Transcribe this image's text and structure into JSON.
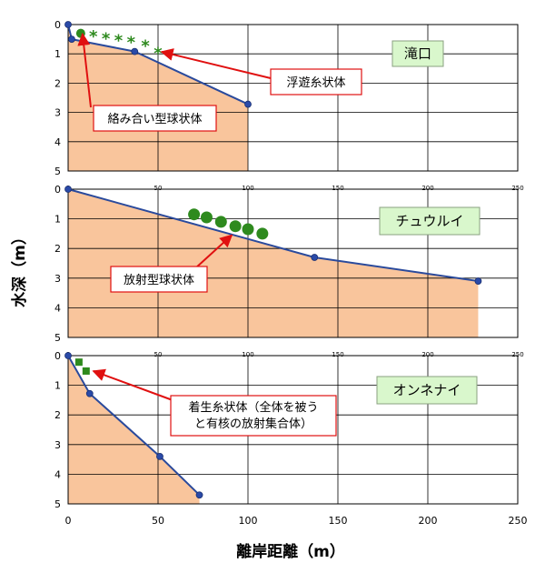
{
  "figure": {
    "ylabel": "水深（m）",
    "xlabel": "離岸距離（m）"
  },
  "colors": {
    "fill": "#f9c59c",
    "line": "#2a4a9c",
    "point": "#2a4aa8",
    "algae": "#2e8a1e",
    "arrow": "#e01010",
    "site_box": "#d9f7cc"
  },
  "chart_data": [
    {
      "type": "area",
      "site": "滝口",
      "xlim": [
        0,
        250
      ],
      "ylim": [
        0,
        5
      ],
      "x_ticks": [
        0,
        50,
        100,
        150,
        200,
        250
      ],
      "y_ticks": [
        0,
        1,
        2,
        3,
        4,
        5
      ],
      "grid": true,
      "profile": [
        {
          "x": 0,
          "y": 0
        },
        {
          "x": 2,
          "y": 0.5
        },
        {
          "x": 37,
          "y": 0.92
        },
        {
          "x": 100,
          "y": 2.72
        }
      ],
      "algae_points": [
        {
          "x": 7,
          "y": 0.3,
          "shape": "circle"
        },
        {
          "x": 14,
          "y": 0.38,
          "shape": "star"
        },
        {
          "x": 21,
          "y": 0.45,
          "shape": "star"
        },
        {
          "x": 28,
          "y": 0.52,
          "shape": "star"
        },
        {
          "x": 35,
          "y": 0.58,
          "shape": "star"
        },
        {
          "x": 43,
          "y": 0.7,
          "shape": "star"
        },
        {
          "x": 50,
          "y": 0.95,
          "shape": "star"
        }
      ],
      "annotations": [
        {
          "text": "浮遊糸状体",
          "points_to": {
            "x": 52,
            "y": 0.93
          }
        },
        {
          "text": "絡み合い型球状体",
          "points_to": {
            "x": 8,
            "y": 0.32
          }
        }
      ]
    },
    {
      "type": "area",
      "site": "チュウルイ",
      "xlim": [
        0,
        250
      ],
      "ylim": [
        0,
        5
      ],
      "x_ticks": [
        0,
        50,
        100,
        150,
        200,
        250
      ],
      "y_ticks": [
        0,
        1,
        2,
        3,
        4,
        5
      ],
      "grid": true,
      "profile": [
        {
          "x": 0,
          "y": 0
        },
        {
          "x": 137,
          "y": 2.3
        },
        {
          "x": 228,
          "y": 3.1
        }
      ],
      "algae_points": [
        {
          "x": 70,
          "y": 0.85,
          "shape": "circle"
        },
        {
          "x": 77,
          "y": 0.95,
          "shape": "circle"
        },
        {
          "x": 85,
          "y": 1.1,
          "shape": "circle"
        },
        {
          "x": 93,
          "y": 1.25,
          "shape": "circle"
        },
        {
          "x": 100,
          "y": 1.35,
          "shape": "circle"
        },
        {
          "x": 108,
          "y": 1.5,
          "shape": "circle"
        }
      ],
      "annotations": [
        {
          "text": "放射型球状体",
          "points_to": {
            "x": 91,
            "y": 1.55
          }
        }
      ]
    },
    {
      "type": "area",
      "site": "オンネナイ",
      "xlim": [
        0,
        250
      ],
      "ylim": [
        0,
        5
      ],
      "x_ticks": [
        0,
        50,
        100,
        150,
        200,
        250
      ],
      "y_ticks": [
        0,
        1,
        2,
        3,
        4,
        5
      ],
      "grid": true,
      "profile": [
        {
          "x": 0,
          "y": 0
        },
        {
          "x": 12,
          "y": 1.28
        },
        {
          "x": 51,
          "y": 3.4
        },
        {
          "x": 73,
          "y": 4.7
        }
      ],
      "algae_points": [
        {
          "x": 6,
          "y": 0.22,
          "shape": "square"
        },
        {
          "x": 10,
          "y": 0.52,
          "shape": "square"
        }
      ],
      "annotations": [
        {
          "text": "着生糸状体（全体を被う\nと有核の放射集合体）",
          "points_to": {
            "x": 14,
            "y": 0.52
          }
        }
      ]
    }
  ]
}
